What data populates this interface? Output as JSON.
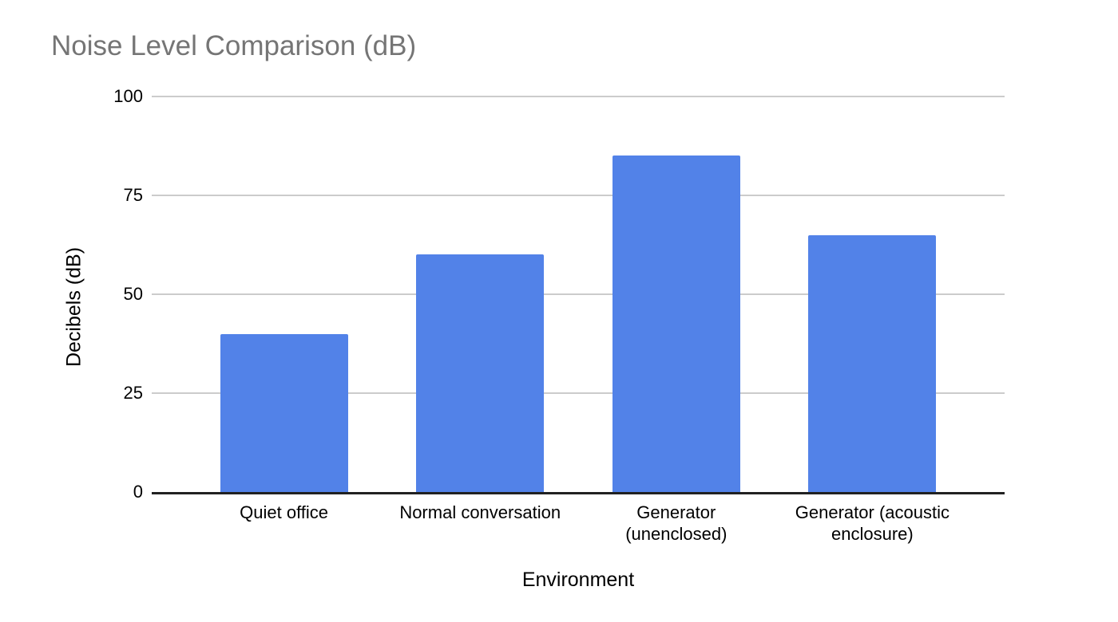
{
  "chart_data": {
    "type": "bar",
    "title": "Noise Level Comparison (dB)",
    "xlabel": "Environment",
    "ylabel": "Decibels (dB)",
    "categories": [
      "Quiet office",
      "Normal conversation",
      "Generator (unenclosed)",
      "Generator (acoustic enclosure)"
    ],
    "series": [
      {
        "name": "Decibels (dB)",
        "values": [
          40,
          60,
          85,
          65
        ]
      }
    ],
    "ylim": [
      0,
      100
    ],
    "yticks": [
      0,
      25,
      50,
      75,
      100
    ],
    "grid": true,
    "legend_position": "none",
    "colors": {
      "bar": "#5282e8",
      "gridline": "#cccccc",
      "axis_line": "#212121",
      "title_text": "#757575",
      "label_text": "#000000",
      "background": "#ffffff"
    }
  }
}
